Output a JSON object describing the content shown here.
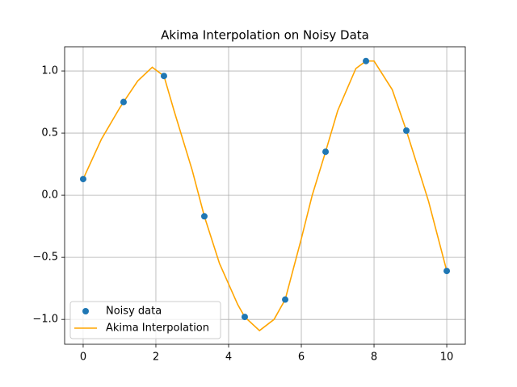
{
  "chart_data": {
    "type": "scatter_line",
    "title": "Akima Interpolation on Noisy Data",
    "xlim": [
      -0.51,
      10.51
    ],
    "ylim": [
      -1.2,
      1.195
    ],
    "xticks": [
      0,
      2,
      4,
      6,
      8,
      10
    ],
    "yticks": [
      {
        "value": -1.0,
        "label": "−1.0"
      },
      {
        "value": -0.5,
        "label": "−0.5"
      },
      {
        "value": 0.0,
        "label": "0.0"
      },
      {
        "value": 0.5,
        "label": "0.5"
      },
      {
        "value": 1.0,
        "label": "1.0"
      }
    ],
    "grid": true,
    "legend": "lower left",
    "series": [
      {
        "name": "Noisy data",
        "kind": "scatter",
        "color": "#1f77b4",
        "x": [
          0,
          1.111,
          2.222,
          3.333,
          4.444,
          5.556,
          6.667,
          7.778,
          8.889,
          10
        ],
        "values": [
          0.13,
          0.75,
          0.96,
          -0.17,
          -0.98,
          -0.84,
          0.35,
          1.08,
          0.52,
          -0.61
        ]
      },
      {
        "name": "Akima Interpolation",
        "kind": "line",
        "color": "#ffa500",
        "x": [
          0,
          0.5,
          1.0,
          1.111,
          1.5,
          1.9,
          2.222,
          2.5,
          3.0,
          3.333,
          3.75,
          4.25,
          4.444,
          4.85,
          5.25,
          5.556,
          6.0,
          6.3,
          6.667,
          7.0,
          7.5,
          7.778,
          8.0,
          8.5,
          8.889,
          9.5,
          10
        ],
        "values": [
          0.13,
          0.45,
          0.7,
          0.75,
          0.92,
          1.03,
          0.96,
          0.68,
          0.2,
          -0.17,
          -0.55,
          -0.88,
          -0.98,
          -1.09,
          -1.0,
          -0.84,
          -0.35,
          0.0,
          0.35,
          0.68,
          1.02,
          1.08,
          1.08,
          0.85,
          0.52,
          -0.05,
          -0.61
        ]
      }
    ]
  }
}
